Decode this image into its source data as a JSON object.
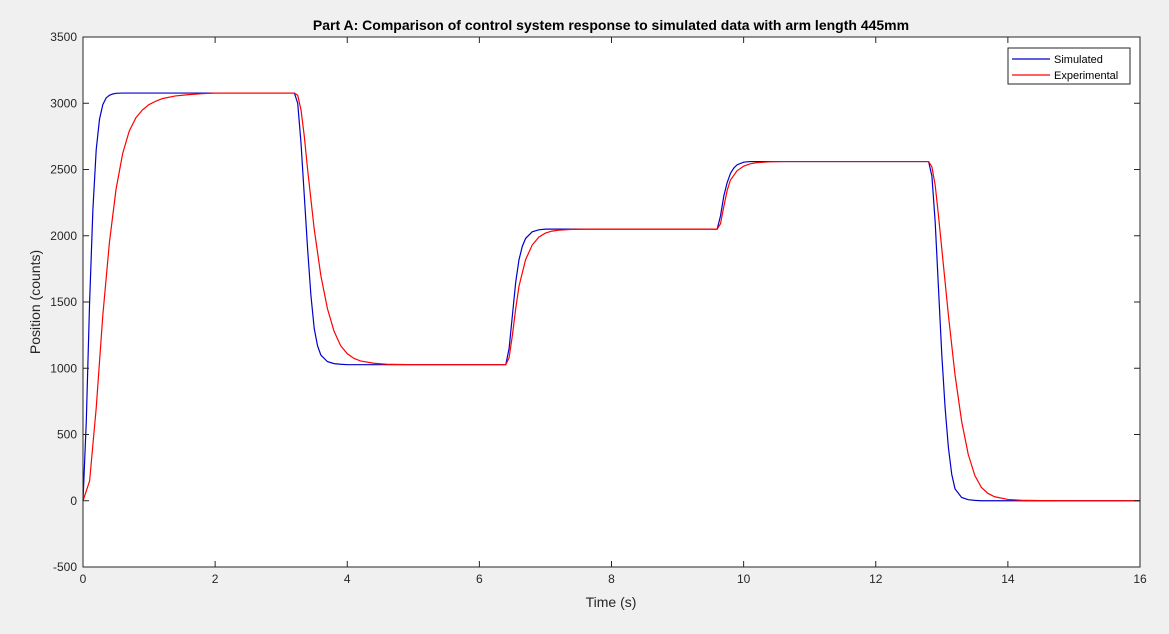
{
  "chart_data": {
    "type": "line",
    "title": "Part A: Comparison of control system response to simulated data with arm length 445mm",
    "xlabel": "Time (s)",
    "ylabel": "Position (counts)",
    "xlim": [
      0,
      16
    ],
    "ylim": [
      -500,
      3500
    ],
    "xticks": [
      0,
      2,
      4,
      6,
      8,
      10,
      12,
      14,
      16
    ],
    "yticks": [
      -500,
      0,
      500,
      1000,
      1500,
      2000,
      2500,
      3000,
      3500
    ],
    "grid": false,
    "legend_position": "top-right",
    "series": [
      {
        "name": "Simulated",
        "color": "#0000cc",
        "x": [
          0,
          0.05,
          0.1,
          0.15,
          0.2,
          0.25,
          0.3,
          0.35,
          0.4,
          0.45,
          0.5,
          0.6,
          0.7,
          0.8,
          1.0,
          1.5,
          2.0,
          3.0,
          3.2,
          3.25,
          3.3,
          3.35,
          3.4,
          3.45,
          3.5,
          3.55,
          3.6,
          3.7,
          3.8,
          3.9,
          4.0,
          4.5,
          5.0,
          6.0,
          6.4,
          6.45,
          6.5,
          6.55,
          6.6,
          6.65,
          6.7,
          6.8,
          6.9,
          7.0,
          7.2,
          7.5,
          8.0,
          9.0,
          9.6,
          9.65,
          9.7,
          9.75,
          9.8,
          9.85,
          9.9,
          10.0,
          10.1,
          10.2,
          10.4,
          11.0,
          12.0,
          12.8,
          12.85,
          12.9,
          12.95,
          13.0,
          13.05,
          13.1,
          13.15,
          13.2,
          13.3,
          13.4,
          13.5,
          13.6,
          14.0,
          15.0,
          16.0
        ],
        "y": [
          0,
          600,
          1500,
          2200,
          2650,
          2880,
          2990,
          3040,
          3060,
          3070,
          3075,
          3077,
          3077,
          3077,
          3077,
          3077,
          3077,
          3077,
          3077,
          3000,
          2700,
          2300,
          1900,
          1550,
          1300,
          1170,
          1100,
          1050,
          1035,
          1030,
          1027,
          1027,
          1027,
          1027,
          1027,
          1150,
          1400,
          1650,
          1820,
          1920,
          1980,
          2030,
          2045,
          2050,
          2050,
          2050,
          2050,
          2050,
          2050,
          2150,
          2300,
          2400,
          2470,
          2510,
          2535,
          2555,
          2560,
          2560,
          2560,
          2560,
          2560,
          2560,
          2450,
          2100,
          1600,
          1100,
          700,
          400,
          200,
          90,
          25,
          8,
          3,
          0,
          0,
          0,
          0
        ]
      },
      {
        "name": "Experimental",
        "color": "#ff0000",
        "x": [
          0,
          0.1,
          0.2,
          0.3,
          0.4,
          0.5,
          0.6,
          0.7,
          0.8,
          0.9,
          1.0,
          1.1,
          1.2,
          1.4,
          1.6,
          1.8,
          2.0,
          3.0,
          3.2,
          3.25,
          3.3,
          3.35,
          3.4,
          3.5,
          3.6,
          3.7,
          3.8,
          3.9,
          4.0,
          4.1,
          4.2,
          4.4,
          4.6,
          5.0,
          6.0,
          6.4,
          6.45,
          6.5,
          6.55,
          6.6,
          6.7,
          6.8,
          6.9,
          7.0,
          7.1,
          7.2,
          7.4,
          7.6,
          8.0,
          9.0,
          9.6,
          9.65,
          9.7,
          9.75,
          9.8,
          9.9,
          10.0,
          10.1,
          10.2,
          10.4,
          10.6,
          11.0,
          12.0,
          12.8,
          12.85,
          12.9,
          12.95,
          13.0,
          13.1,
          13.2,
          13.3,
          13.4,
          13.5,
          13.6,
          13.7,
          13.8,
          14.0,
          14.2,
          14.5,
          15.0,
          16.0
        ],
        "y": [
          0,
          150,
          700,
          1400,
          1950,
          2350,
          2620,
          2790,
          2890,
          2950,
          2990,
          3015,
          3035,
          3055,
          3065,
          3072,
          3077,
          3077,
          3077,
          3060,
          2950,
          2750,
          2500,
          2050,
          1700,
          1450,
          1280,
          1170,
          1110,
          1075,
          1055,
          1038,
          1030,
          1027,
          1027,
          1027,
          1080,
          1250,
          1450,
          1620,
          1820,
          1930,
          1990,
          2020,
          2035,
          2042,
          2048,
          2050,
          2050,
          2050,
          2050,
          2090,
          2220,
          2340,
          2420,
          2490,
          2525,
          2543,
          2552,
          2558,
          2560,
          2560,
          2560,
          2560,
          2520,
          2380,
          2150,
          1900,
          1400,
          950,
          600,
          350,
          190,
          100,
          55,
          30,
          10,
          4,
          1,
          0,
          0
        ]
      }
    ]
  }
}
